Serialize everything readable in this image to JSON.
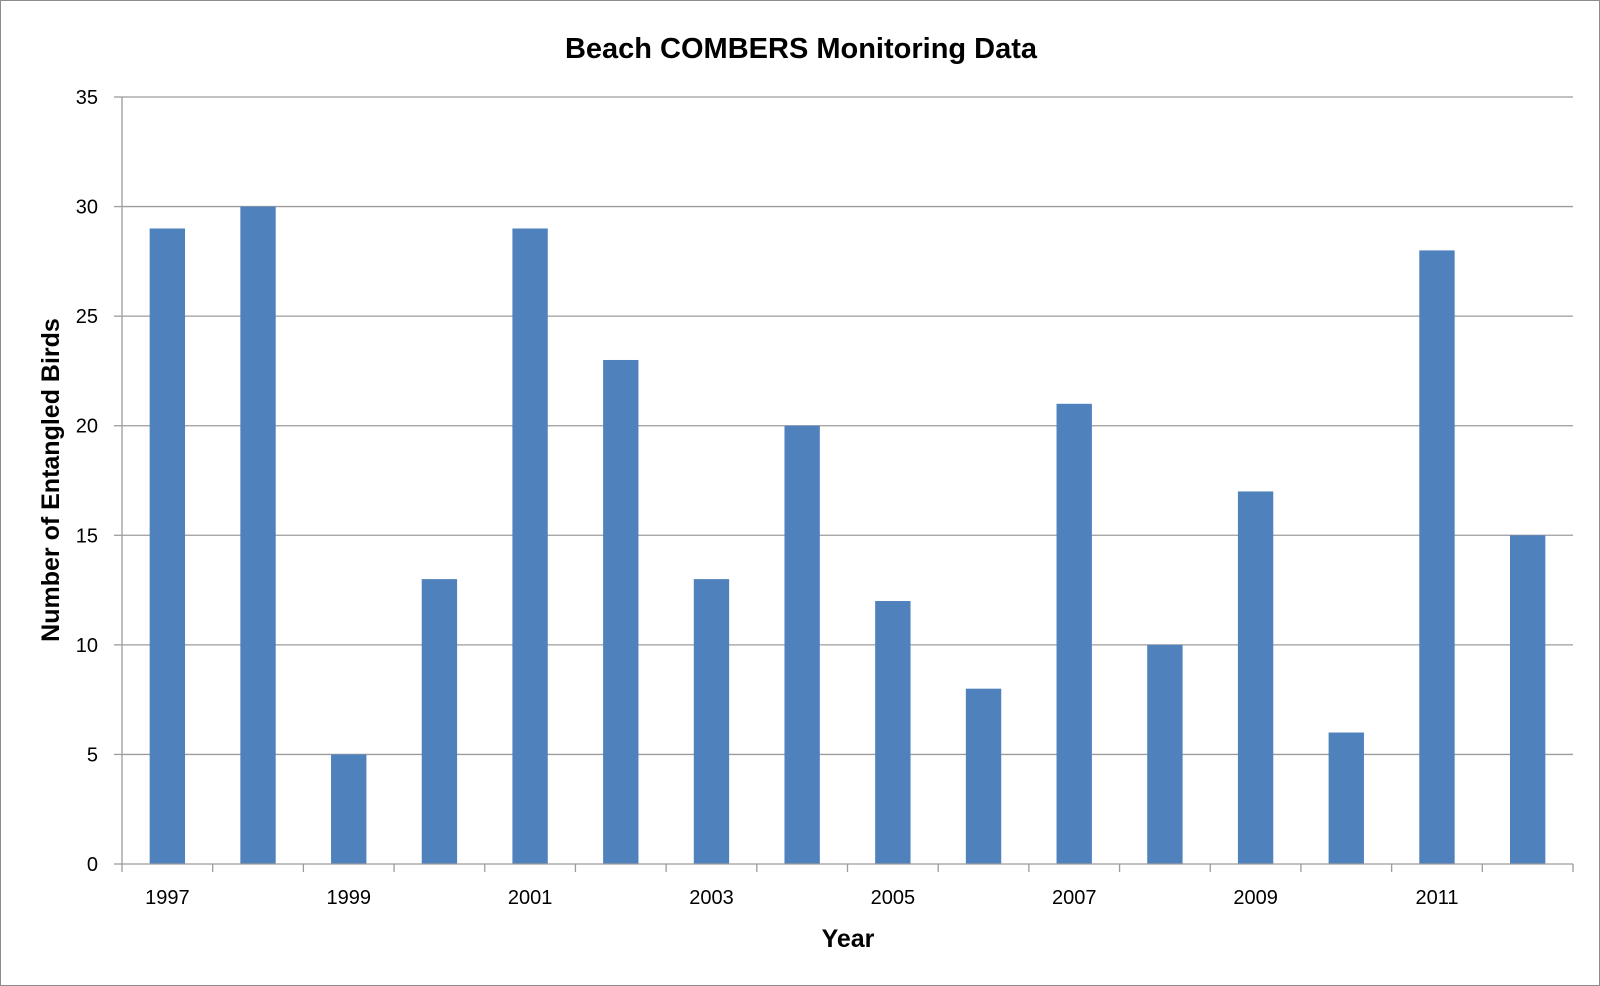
{
  "chart_data": {
    "type": "bar",
    "title": "Beach COMBERS Monitoring Data",
    "xlabel": "Year",
    "ylabel": "Number of Entangled Birds",
    "categories": [
      "1997",
      "1998",
      "1999",
      "2000",
      "2001",
      "2002",
      "2003",
      "2004",
      "2005",
      "2006",
      "2007",
      "2008",
      "2009",
      "2010",
      "2011",
      "2012"
    ],
    "x_tick_labels": [
      "1997",
      "",
      "1999",
      "",
      "2001",
      "",
      "2003",
      "",
      "2005",
      "",
      "2007",
      "",
      "2009",
      "",
      "2011",
      ""
    ],
    "values": [
      29,
      30,
      5,
      13,
      29,
      23,
      13,
      20,
      12,
      8,
      21,
      10,
      17,
      6,
      28,
      15
    ],
    "ylim": [
      0,
      35
    ],
    "y_ticks": [
      "0",
      "5",
      "10",
      "15",
      "20",
      "25",
      "30",
      "35"
    ],
    "grid": true,
    "legend": "none",
    "bar_color": "#4f81bd",
    "grid_color": "#9c9c9c"
  }
}
